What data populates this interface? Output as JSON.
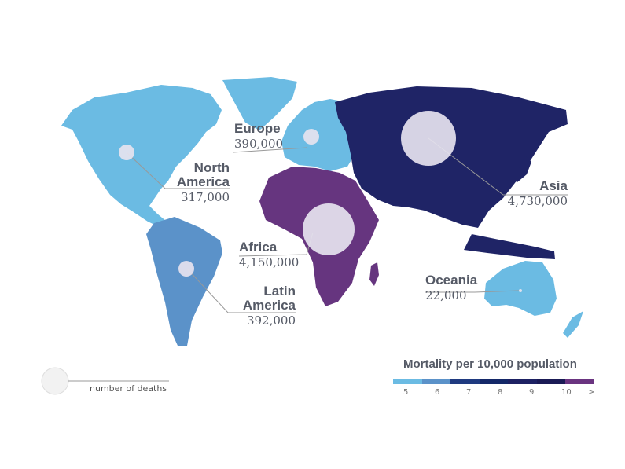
{
  "colors": {
    "scale": [
      "#6bbbe3",
      "#5b92c9",
      "#1f3a80",
      "#142868",
      "#1d2163",
      "#1a1a55",
      "#6a3480"
    ],
    "bubble": "#e6e3ef"
  },
  "regions": [
    {
      "name": "North America",
      "name_line1": "North",
      "name_line2": "America",
      "deaths": "317,000",
      "color": "#6bbbe3"
    },
    {
      "name": "Europe",
      "deaths": "390,000",
      "color": "#6bbbe3"
    },
    {
      "name": "Asia",
      "deaths": "4,730,000",
      "color": "#1f2466"
    },
    {
      "name": "Africa",
      "deaths": "4,150,000",
      "color": "#66357f"
    },
    {
      "name": "Latin America",
      "name_line1": "Latin",
      "name_line2": "America",
      "deaths": "392,000",
      "color": "#5b92c9"
    },
    {
      "name": "Oceania",
      "deaths": "22,000",
      "color": "#6bbbe3"
    }
  ],
  "legend": {
    "title": "Mortality per 10,000 population",
    "ticks": [
      "5",
      "6",
      "7",
      "8",
      "9",
      "10",
      ">"
    ],
    "size_caption": "number of deaths"
  }
}
